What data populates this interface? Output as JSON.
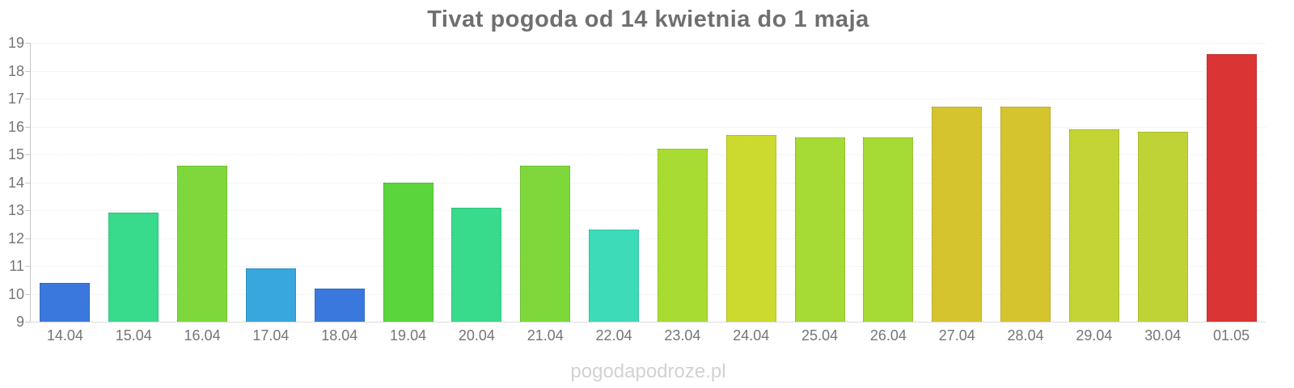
{
  "title": "Tivat pogoda od 14 kwietnia do 1 maja",
  "watermark": "pogodapodroze.pl",
  "colors": {
    "title_text": "#6f6f6f",
    "axis_text": "#757575",
    "watermark_text": "#d2d2d2",
    "axis_line": "#c9c9c9",
    "gridline": "#ebebeb"
  },
  "chart_data": {
    "type": "bar",
    "title": "Tivat pogoda od 14 kwietnia do 1 maja",
    "xlabel": "",
    "ylabel": "",
    "ylim": [
      9,
      19
    ],
    "yticks": [
      19,
      18,
      17,
      16,
      15,
      14,
      13,
      12,
      11,
      10,
      9
    ],
    "grid": true,
    "legend": "none",
    "categories": [
      "14.04",
      "15.04",
      "16.04",
      "17.04",
      "18.04",
      "19.04",
      "20.04",
      "21.04",
      "22.04",
      "23.04",
      "24.04",
      "25.04",
      "26.04",
      "27.04",
      "28.04",
      "29.04",
      "30.04",
      "01.05"
    ],
    "values": [
      10.4,
      12.9,
      14.6,
      10.9,
      10.2,
      14.0,
      13.1,
      14.6,
      12.3,
      15.2,
      15.7,
      15.6,
      15.6,
      16.7,
      16.7,
      15.9,
      15.8,
      18.6
    ],
    "bar_colors": [
      "#3a78dd",
      "#38da8c",
      "#7ed83b",
      "#38a7dd",
      "#3a78dd",
      "#5ad53c",
      "#38da8c",
      "#7ed83b",
      "#3cdcb9",
      "#a8dc32",
      "#ccd92e",
      "#a6da35",
      "#a6da35",
      "#d5c42e",
      "#d5c42e",
      "#c3d435",
      "#c0d336",
      "#da3434"
    ]
  }
}
